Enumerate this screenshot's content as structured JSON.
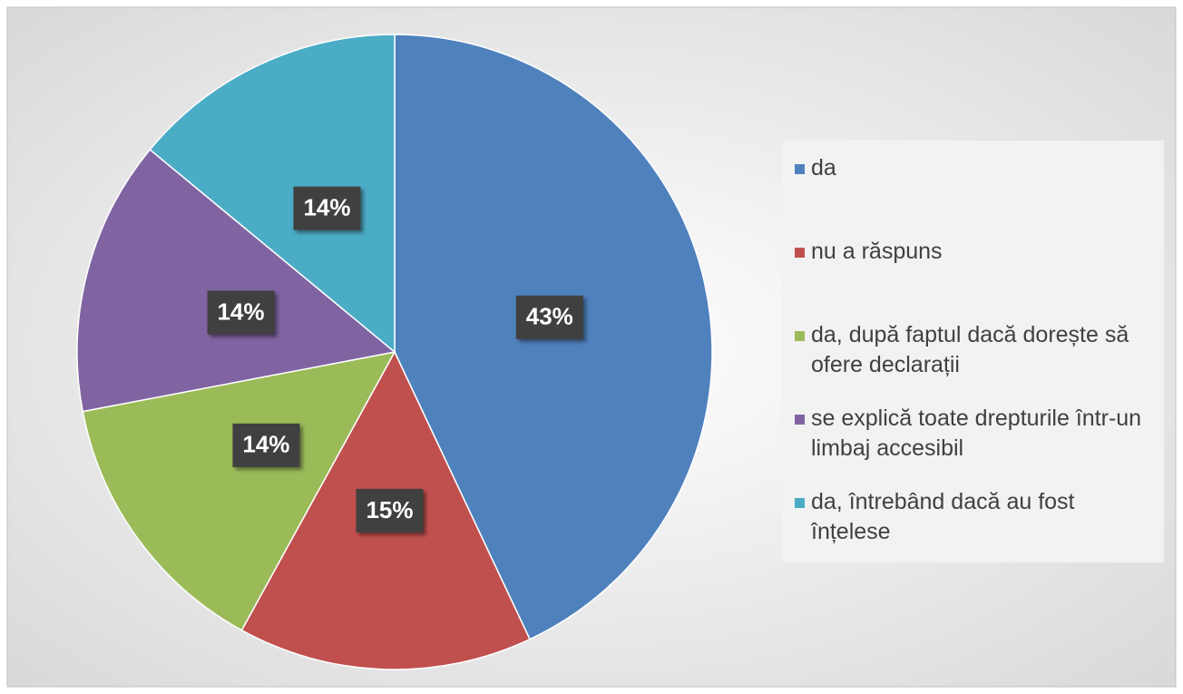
{
  "chart_data": {
    "type": "pie",
    "categories": [
      "da",
      "nu a răspuns",
      "da, după faptul dacă dorește să ofere declarații",
      "se explică toate drepturile într-un limbaj accesibil",
      "da, întrebând dacă au fost înțelese"
    ],
    "values": [
      43,
      15,
      14,
      14,
      14
    ],
    "value_labels": [
      "43%",
      "15%",
      "14%",
      "14%",
      "14%"
    ],
    "colors": [
      "#4f81bd",
      "#c0504d",
      "#9bbb59",
      "#8064a2",
      "#4bacc6"
    ],
    "legend": "right"
  }
}
